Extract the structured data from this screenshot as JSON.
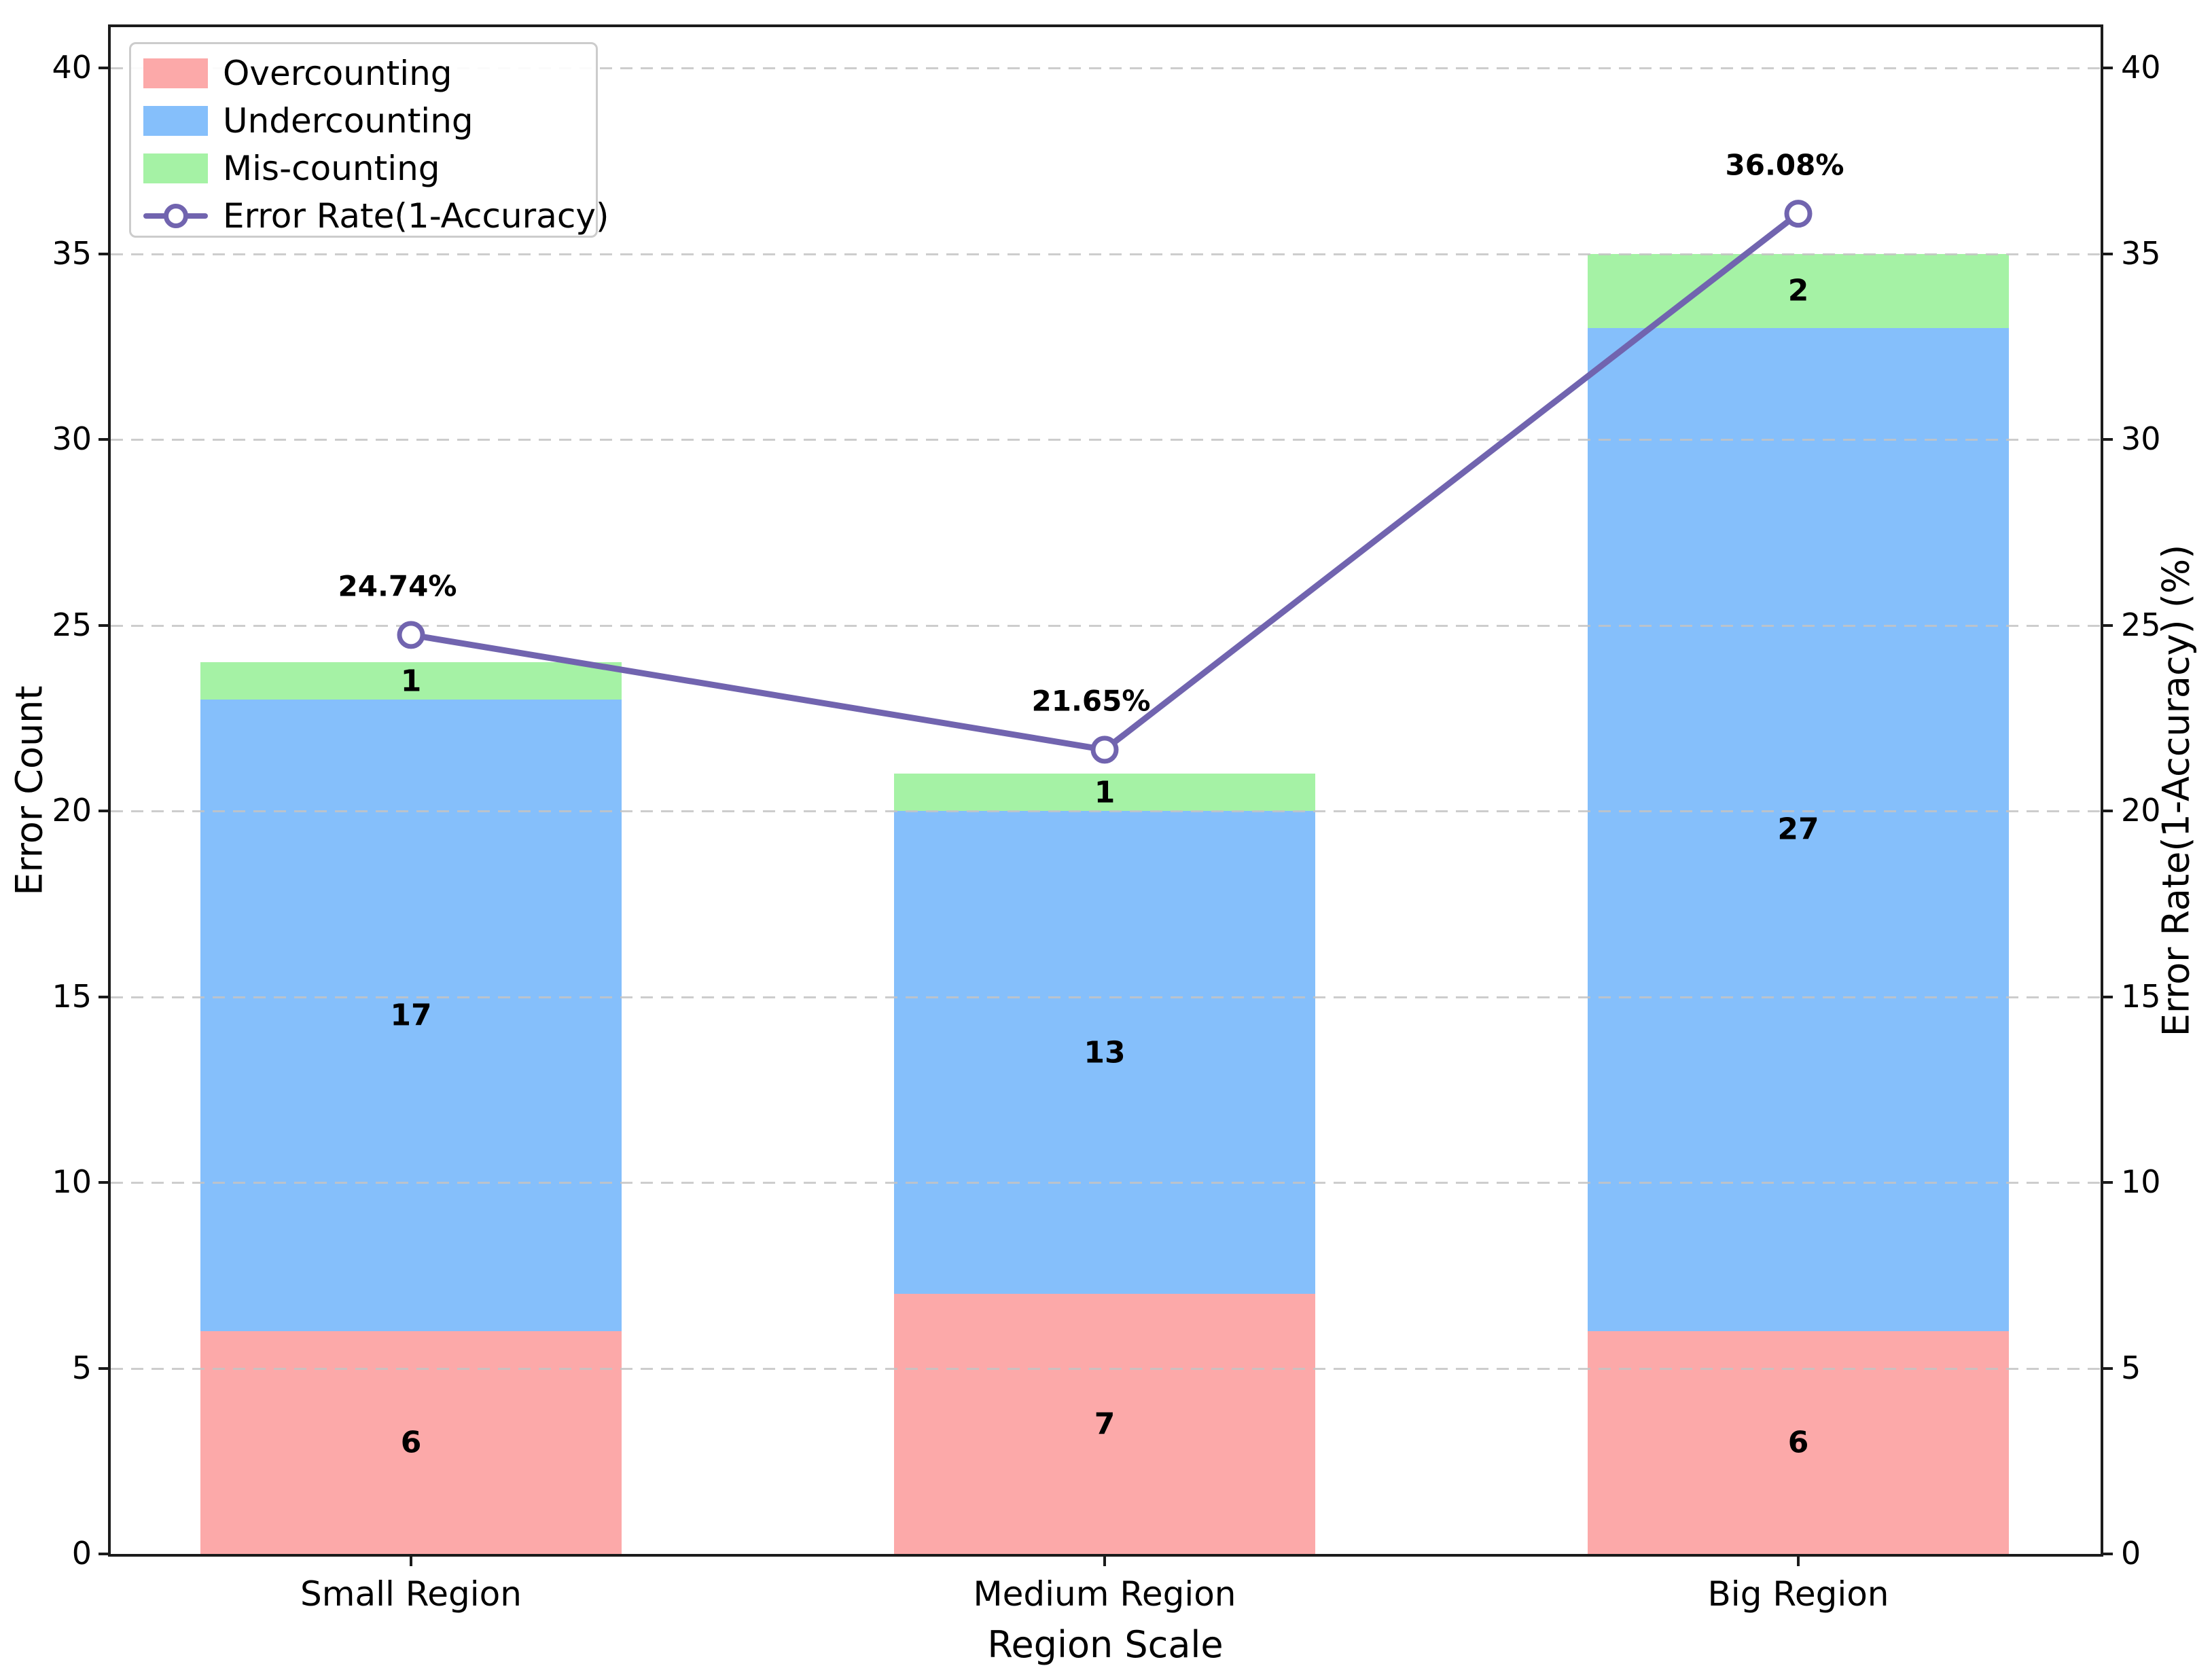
{
  "chart_data": {
    "type": "bar",
    "stacked": true,
    "categories": [
      "Small Region",
      "Medium Region",
      "Big Region"
    ],
    "series": [
      {
        "name": "Overcounting",
        "color": "#FCA9A9",
        "values": [
          6,
          7,
          6
        ]
      },
      {
        "name": "Undercounting",
        "color": "#85BFFB",
        "values": [
          17,
          13,
          27
        ]
      },
      {
        "name": "Mis-counting",
        "color": "#A5F2A5",
        "values": [
          1,
          1,
          2
        ]
      }
    ],
    "line_series": {
      "name": "Error Rate(1-Accuracy)",
      "color": "#7164AF",
      "values": [
        24.74,
        21.65,
        36.08
      ],
      "labels": [
        "24.74%",
        "21.65%",
        "36.08%"
      ]
    },
    "xlabel": "Region Scale",
    "ylabel_left": "Error Count",
    "ylabel_right": "Error Rate(1-Accuracy) (%)",
    "yticks_left": [
      "0",
      "5",
      "10",
      "15",
      "20",
      "25",
      "30",
      "35",
      "40"
    ],
    "yticks_right": [
      "0",
      "5",
      "10",
      "15",
      "20",
      "25",
      "30",
      "35",
      "40"
    ],
    "ylim": [
      0,
      41.1
    ],
    "grid": true,
    "grid_style": "dashed",
    "legend_position": "upper left",
    "bar_totals": [
      24,
      21,
      35
    ]
  }
}
